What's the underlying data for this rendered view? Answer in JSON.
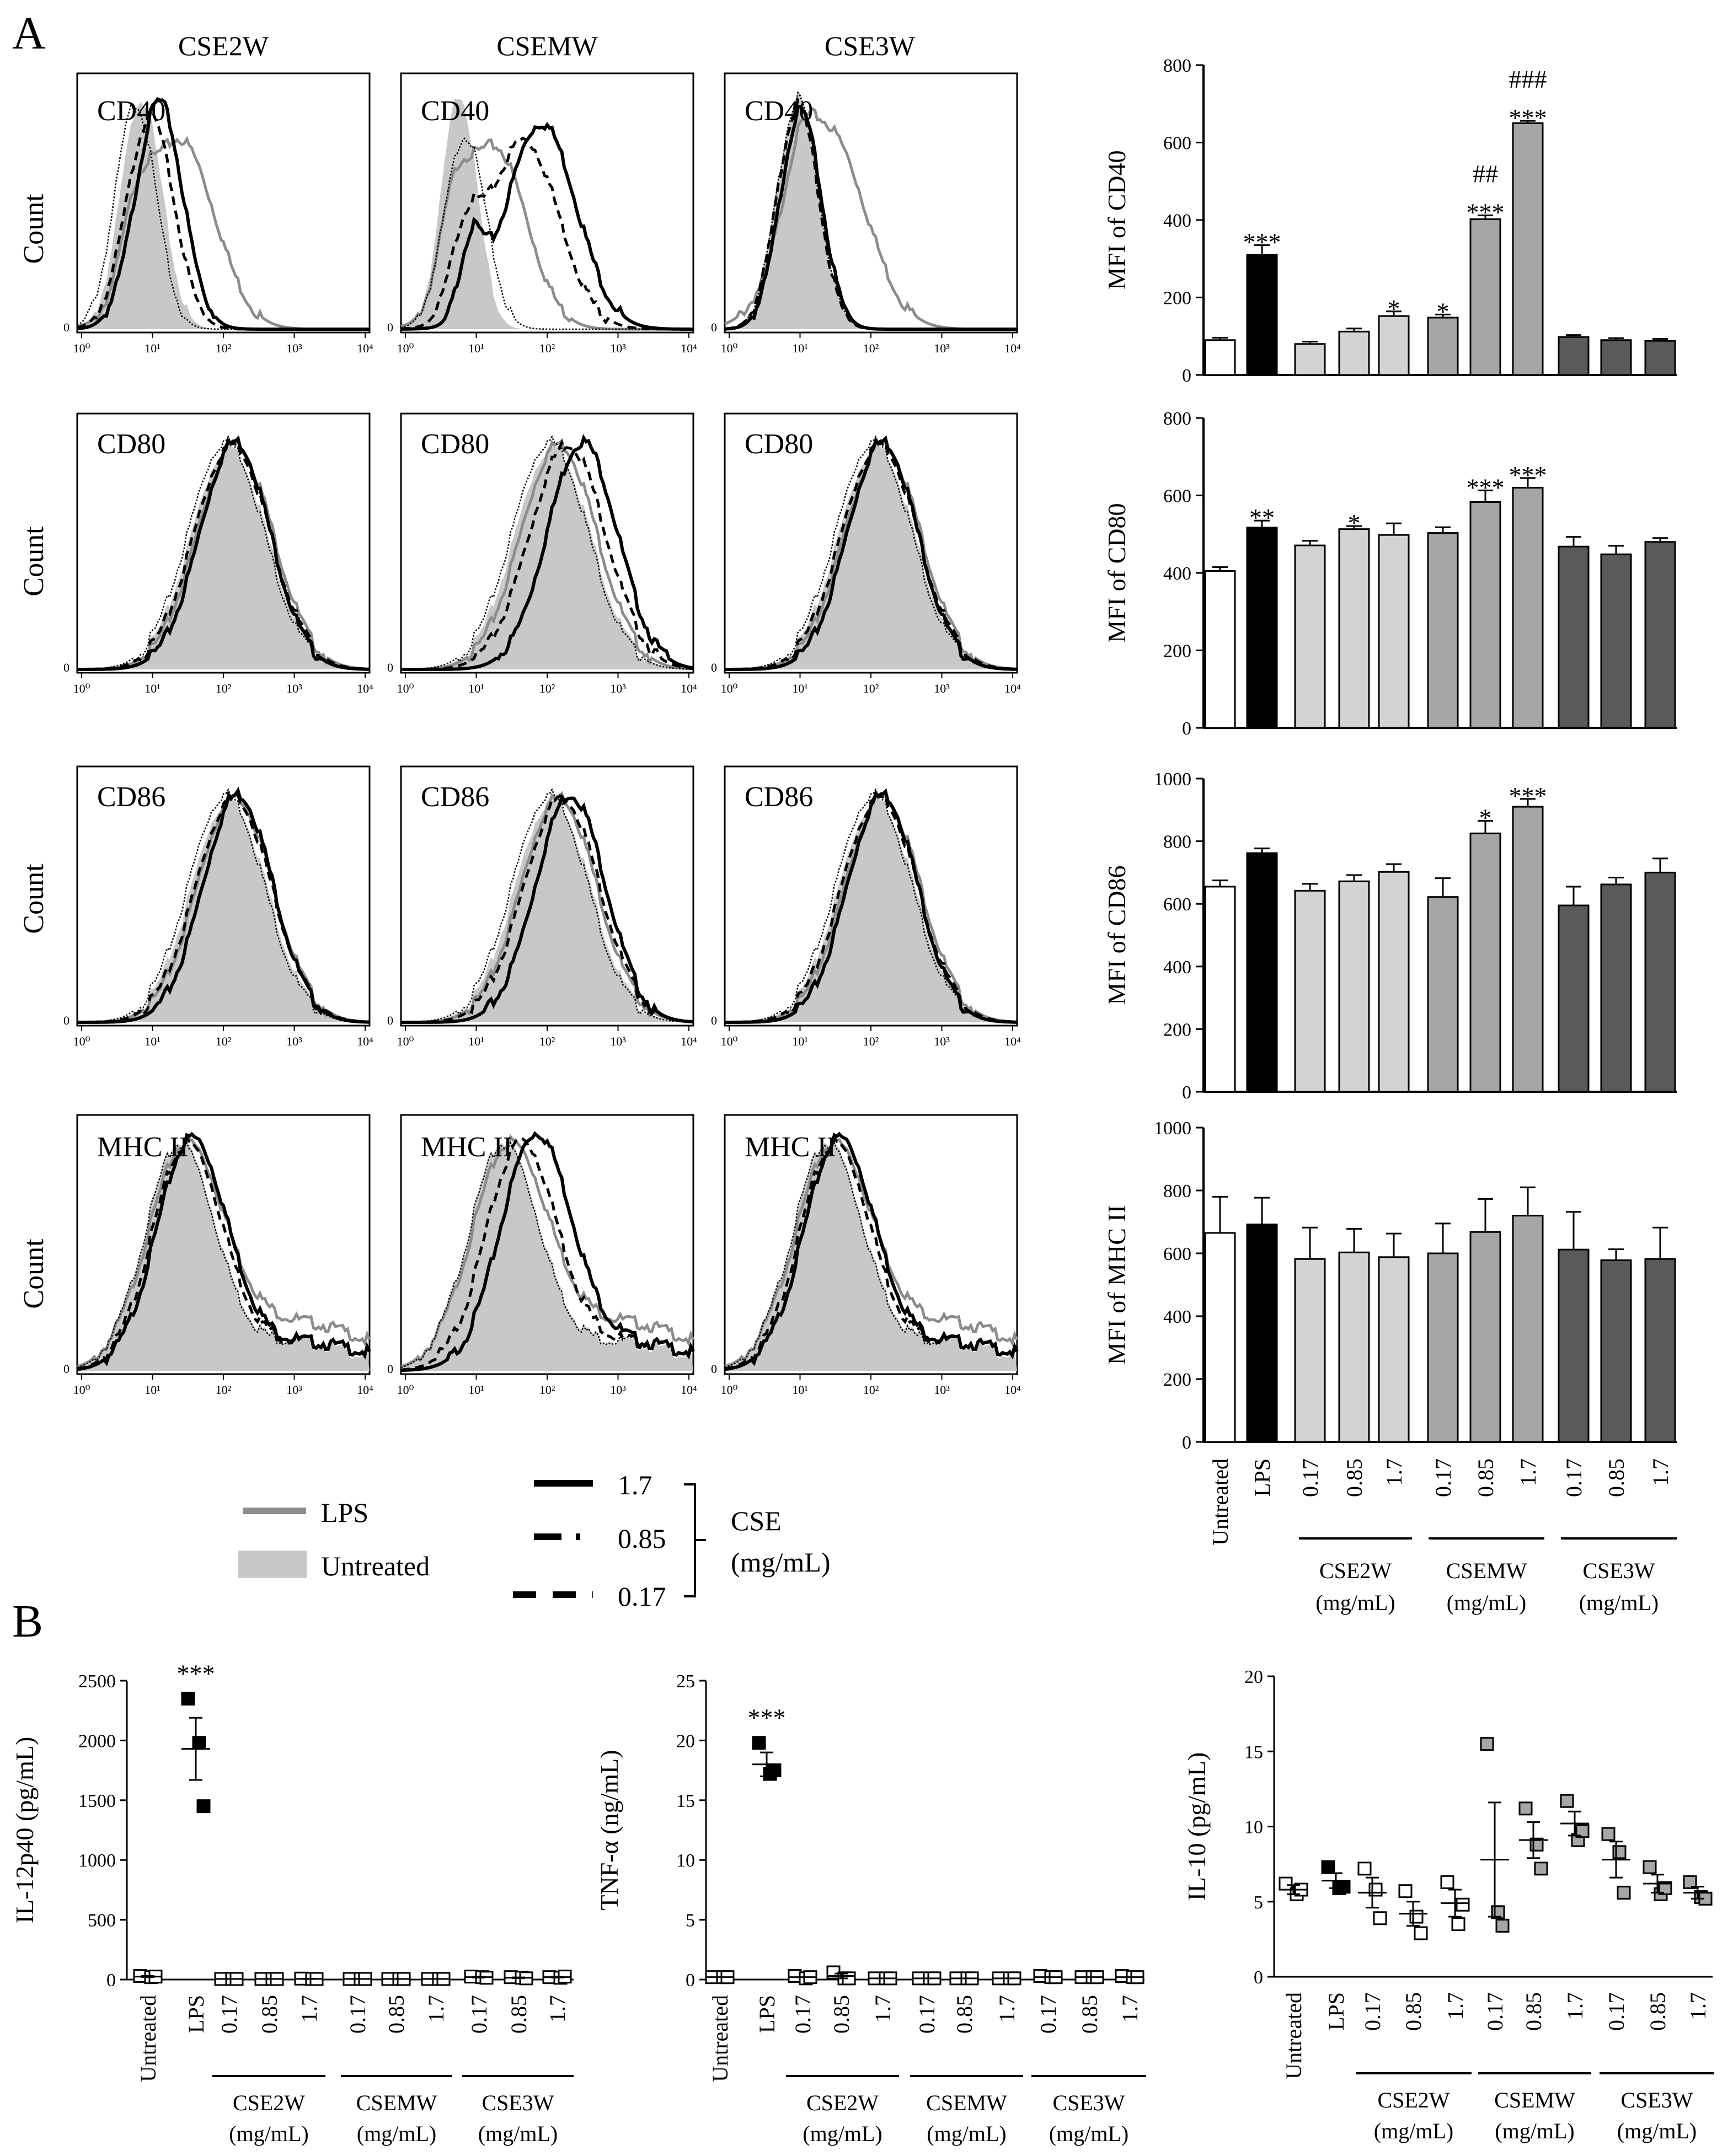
{
  "figure": {
    "panel_a_letter": "A",
    "panel_b_letter": "B",
    "column_titles": [
      "CSE2W",
      "CSEMW",
      "CSE3W"
    ],
    "marker_labels": [
      "CD40",
      "CD80",
      "CD86",
      "MHC II"
    ],
    "count_label": "Count",
    "hist_axis_ticks": [
      "10⁰",
      "10¹",
      "10²",
      "10³",
      "10⁴"
    ],
    "hist_y_zero": "0"
  },
  "legend": {
    "lps": "LPS",
    "untreated": "Untreated",
    "dose_labels": [
      "1.7",
      "0.85",
      "0.17"
    ],
    "cse_title": "CSE",
    "cse_unit": "(mg/mL)"
  },
  "bar_x": {
    "categories": [
      "Untreated",
      "LPS",
      "0.17",
      "0.85",
      "1.7",
      "0.17",
      "0.85",
      "1.7",
      "0.17",
      "0.85",
      "1.7"
    ],
    "groups": [
      {
        "name": "CSE2W",
        "unit": "(mg/mL)"
      },
      {
        "name": "CSEMW",
        "unit": "(mg/mL)"
      },
      {
        "name": "CSE3W",
        "unit": "(mg/mL)"
      }
    ]
  },
  "colors": {
    "untreated": "#ffffff",
    "lps": "#000000",
    "cse2w": "#d3d3d3",
    "csemw": "#a6a6a6",
    "cse3w": "#5a5a5a",
    "hist_fill": "#c8c8c8",
    "lps_line": "#8c8c8c"
  },
  "chart_data": [
    {
      "type": "bar",
      "title": "",
      "ylabel": "MFI of CD40",
      "ylim": [
        0,
        800
      ],
      "yticks": [
        0,
        200,
        400,
        600,
        800
      ],
      "values": [
        90,
        310,
        80,
        112,
        152,
        148,
        402,
        650,
        98,
        90,
        88
      ],
      "errors": [
        6,
        25,
        6,
        8,
        12,
        8,
        10,
        6,
        5,
        5,
        5
      ],
      "annotations": [
        "",
        "***",
        "",
        "",
        "*",
        "*",
        "##\n***",
        "###\n***",
        "",
        "",
        ""
      ]
    },
    {
      "type": "bar",
      "title": "",
      "ylabel": "MFI of CD80",
      "ylim": [
        0,
        800
      ],
      "yticks": [
        0,
        200,
        400,
        600,
        800
      ],
      "values": [
        405,
        517,
        471,
        513,
        498,
        503,
        583,
        620,
        468,
        448,
        480
      ],
      "errors": [
        10,
        18,
        12,
        8,
        30,
        15,
        30,
        25,
        25,
        22,
        10
      ],
      "annotations": [
        "",
        "**",
        "",
        "*",
        "",
        "",
        "***",
        "***",
        "",
        "",
        ""
      ]
    },
    {
      "type": "bar",
      "title": "",
      "ylabel": "MFI of CD86",
      "ylim": [
        0,
        1000
      ],
      "yticks": [
        0,
        200,
        400,
        600,
        800,
        1000
      ],
      "values": [
        655,
        762,
        642,
        672,
        702,
        622,
        825,
        910,
        595,
        662,
        700
      ],
      "errors": [
        20,
        15,
        22,
        20,
        25,
        60,
        40,
        25,
        60,
        22,
        45
      ],
      "annotations": [
        "",
        "",
        "",
        "",
        "",
        "",
        "*",
        "***",
        "",
        "",
        ""
      ]
    },
    {
      "type": "bar",
      "title": "",
      "ylabel": "MFI of MHC II",
      "ylim": [
        0,
        1000
      ],
      "yticks": [
        0,
        200,
        400,
        600,
        800,
        1000
      ],
      "values": [
        665,
        692,
        582,
        603,
        588,
        600,
        668,
        720,
        612,
        578,
        582
      ],
      "errors": [
        115,
        85,
        100,
        75,
        75,
        95,
        105,
        90,
        120,
        35,
        100
      ],
      "annotations": [
        "",
        "",
        "",
        "",
        "",
        "",
        "",
        "",
        "",
        "",
        ""
      ]
    },
    {
      "type": "scatter",
      "title": "",
      "ylabel": "IL-12p40 (pg/mL)",
      "ylim": [
        0,
        2500
      ],
      "yticks": [
        0,
        500,
        1000,
        1500,
        2000,
        2500
      ],
      "points": [
        [
          30,
          20,
          25
        ],
        [
          2350,
          1980,
          1450
        ],
        [
          5,
          5,
          5
        ],
        [
          5,
          5,
          5
        ],
        [
          8,
          5,
          5
        ],
        [
          5,
          5,
          5
        ],
        [
          5,
          5,
          5
        ],
        [
          5,
          5,
          5
        ],
        [
          25,
          20,
          15
        ],
        [
          20,
          15,
          10
        ],
        [
          20,
          15,
          25
        ]
      ],
      "means": [
        25,
        1930,
        5,
        5,
        6,
        5,
        5,
        5,
        20,
        15,
        20
      ],
      "sems": [
        5,
        260,
        0,
        0,
        1,
        0,
        0,
        0,
        3,
        3,
        3
      ],
      "annotations": [
        "",
        "***",
        "",
        "",
        "",
        "",
        "",
        "",
        "",
        "",
        ""
      ]
    },
    {
      "type": "scatter",
      "title": "",
      "ylabel": "TNF-α (ng/mL)",
      "ylim": [
        0,
        25
      ],
      "yticks": [
        0,
        5,
        10,
        15,
        20,
        25
      ],
      "points": [
        [
          0.2,
          0.2,
          0.2
        ],
        [
          19.8,
          17.2,
          17.5
        ],
        [
          0.3,
          0.1,
          0.2
        ],
        [
          0.6,
          0.1,
          0.1
        ],
        [
          0.1,
          0.1,
          0.1
        ],
        [
          0.1,
          0.1,
          0.1
        ],
        [
          0.1,
          0.1,
          0.1
        ],
        [
          0.1,
          0.1,
          0.1
        ],
        [
          0.3,
          0.2,
          0.2
        ],
        [
          0.2,
          0.2,
          0.2
        ],
        [
          0.3,
          0.2,
          0.2
        ]
      ],
      "means": [
        0.2,
        18,
        0.2,
        0.3,
        0.1,
        0.1,
        0.1,
        0.1,
        0.2,
        0.2,
        0.2
      ],
      "sems": [
        0,
        1,
        0,
        0.2,
        0,
        0,
        0,
        0,
        0,
        0,
        0
      ],
      "annotations": [
        "",
        "***",
        "",
        "",
        "",
        "",
        "",
        "",
        "",
        "",
        ""
      ]
    },
    {
      "type": "scatter",
      "title": "",
      "ylabel": "IL-10 (pg/mL)",
      "ylim": [
        0,
        20
      ],
      "yticks": [
        0,
        5,
        10,
        15,
        20
      ],
      "points": [
        [
          6.2,
          5.5,
          5.8
        ],
        [
          7.3,
          5.9,
          6.0
        ],
        [
          7.2,
          5.8,
          3.9
        ],
        [
          5.7,
          4.0,
          2.9
        ],
        [
          6.3,
          3.5,
          4.8
        ],
        [
          15.5,
          4.3,
          3.4
        ],
        [
          11.2,
          8.8,
          7.2
        ],
        [
          11.7,
          9.1,
          9.7
        ],
        [
          9.5,
          8.3,
          5.6
        ],
        [
          7.3,
          5.5,
          5.9
        ],
        [
          6.3,
          5.3,
          5.2
        ]
      ],
      "means": [
        5.8,
        6.4,
        5.6,
        4.2,
        4.9,
        7.8,
        9.1,
        10.2,
        7.8,
        6.2,
        5.6
      ],
      "sems": [
        0.3,
        0.5,
        1.0,
        0.8,
        0.9,
        3.8,
        1.2,
        0.8,
        1.2,
        0.6,
        0.4
      ],
      "annotations": [
        "",
        "",
        "",
        "",
        "",
        "",
        "",
        "",
        "",
        "",
        ""
      ]
    }
  ]
}
